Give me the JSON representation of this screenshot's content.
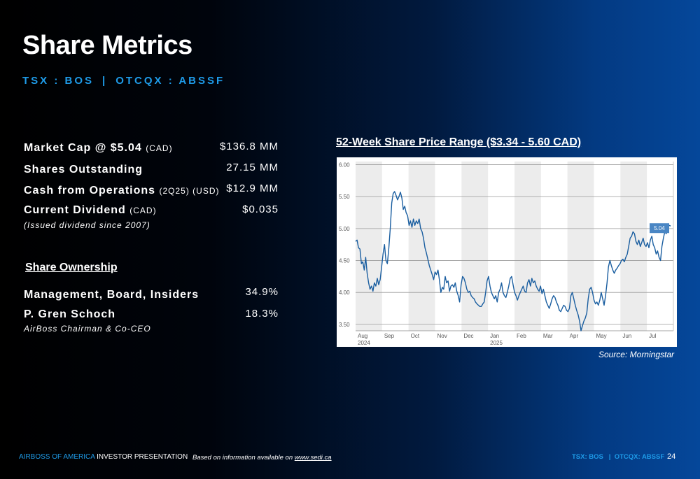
{
  "header": {
    "title": "Share Metrics",
    "ticker_tsx": "TSX : BOS",
    "ticker_sep": "|",
    "ticker_otc": "OTCQX : ABSSF"
  },
  "metrics": [
    {
      "label": "Market Cap @ $5.04",
      "unit": "(CAD)",
      "value": "$136.8 MM"
    },
    {
      "label": "Shares Outstanding",
      "unit": "",
      "value": "27.15 MM"
    },
    {
      "label": "Cash from Operations",
      "unit": "(2Q25) (USD)",
      "value": "$12.9 MM"
    },
    {
      "label": "Current Dividend",
      "unit": "(CAD)",
      "value": "$0.035"
    }
  ],
  "dividend_note": "(Issued dividend since 2007)",
  "ownership": {
    "heading": "Share Ownership",
    "items": [
      {
        "label": "Management, Board, Insiders",
        "value": "34.9%"
      },
      {
        "label": "P. Gren Schoch",
        "value": "18.3%"
      }
    ],
    "schoch_role": "AirBoss Chairman & Co-CEO"
  },
  "chart_title": "52-Week Share Price Range ($3.34 - 5.60 CAD)",
  "source": "Source: Morningstar",
  "chart_data": {
    "type": "line",
    "title": "52-Week Share Price Range ($3.34 - 5.60 CAD)",
    "xlabel": "",
    "ylabel": "",
    "ylim": [
      3.4,
      6.05
    ],
    "yticks": [
      "3.50",
      "4.00",
      "4.50",
      "5.00",
      "5.50",
      "6.00"
    ],
    "months": [
      "Aug",
      "Sep",
      "Oct",
      "Nov",
      "Dec",
      "Jan",
      "Feb",
      "Mar",
      "Apr",
      "May",
      "Jun",
      "Jul"
    ],
    "year_labels": [
      {
        "month": "Aug",
        "year": "2024"
      },
      {
        "month": "Jan",
        "year": "2025"
      }
    ],
    "last_value_label": "5.04",
    "line_color": "#1a5ea0",
    "series": [
      {
        "values": [
          4.8,
          4.82,
          4.7,
          4.68,
          4.45,
          4.48,
          4.35,
          4.55,
          4.3,
          4.15,
          4.05,
          4.1,
          4.02,
          4.15,
          4.1,
          4.22,
          4.12,
          4.2,
          4.4,
          4.6,
          4.75,
          4.5,
          4.45,
          4.7,
          5.0,
          5.4,
          5.55,
          5.58,
          5.52,
          5.45,
          5.5,
          5.57,
          5.48,
          5.3,
          5.35,
          5.25,
          5.2,
          5.05,
          5.12,
          5.02,
          5.15,
          5.05,
          5.12,
          5.08,
          5.15,
          5.0,
          4.95,
          4.85,
          4.7,
          4.62,
          4.52,
          4.42,
          4.35,
          4.28,
          4.2,
          4.32,
          4.28,
          4.35,
          4.2,
          4.0,
          4.08,
          4.05,
          4.25,
          4.15,
          4.18,
          4.02,
          4.1,
          4.12,
          4.08,
          4.15,
          4.02,
          3.95,
          3.85,
          4.12,
          4.25,
          4.22,
          4.15,
          4.05,
          4.0,
          4.02,
          3.95,
          3.92,
          3.9,
          3.85,
          3.82,
          3.8,
          3.78,
          3.78,
          3.82,
          3.85,
          4.0,
          4.18,
          4.25,
          4.1,
          4.0,
          3.95,
          3.9,
          3.95,
          3.85,
          4.0,
          4.05,
          4.15,
          4.0,
          3.95,
          3.92,
          4.0,
          4.1,
          4.22,
          4.25,
          4.12,
          4.0,
          3.95,
          3.88,
          3.95,
          4.0,
          4.05,
          4.1,
          4.02,
          4.0,
          4.15,
          4.2,
          4.1,
          4.22,
          4.15,
          4.18,
          4.1,
          4.05,
          4.02,
          4.1,
          3.98,
          4.05,
          3.95,
          3.85,
          3.8,
          3.75,
          3.82,
          3.9,
          3.95,
          3.92,
          3.85,
          3.8,
          3.72,
          3.7,
          3.75,
          3.8,
          3.78,
          3.72,
          3.7,
          3.75,
          3.95,
          4.0,
          3.9,
          3.8,
          3.72,
          3.65,
          3.55,
          3.4,
          3.48,
          3.55,
          3.6,
          3.68,
          3.9,
          4.05,
          4.08,
          4.0,
          3.88,
          3.82,
          3.85,
          3.8,
          3.88,
          4.0,
          3.9,
          3.8,
          3.95,
          4.15,
          4.4,
          4.5,
          4.42,
          4.35,
          4.3,
          4.35,
          4.38,
          4.42,
          4.45,
          4.5,
          4.52,
          4.48,
          4.55,
          4.6,
          4.72,
          4.85,
          4.88,
          4.95,
          4.92,
          4.8,
          4.75,
          4.82,
          4.72,
          4.78,
          4.85,
          4.75,
          4.72,
          4.78,
          4.7,
          4.82,
          4.88,
          4.75,
          4.7,
          4.6,
          4.65,
          4.55,
          4.5,
          4.72,
          4.85,
          4.95,
          4.92,
          5.02,
          5.05,
          5.04
        ]
      }
    ]
  },
  "footer": {
    "brand": "AIRBOSS OF AMERICA",
    "presentation": "INVESTOR PRESENTATION",
    "note_prefix": "Based on information available on",
    "note_link": "www.sedi.ca",
    "tickers": "TSX: BOS   |  OTCQX: ABSSF",
    "page": "24"
  }
}
